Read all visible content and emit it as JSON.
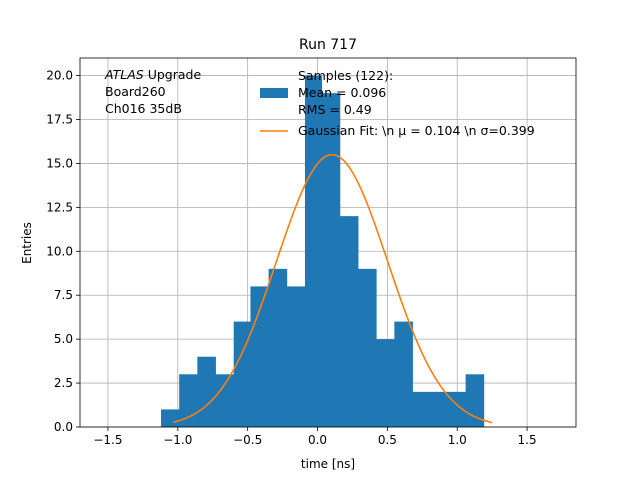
{
  "chart_data": {
    "type": "bar",
    "title": "Run 717",
    "xlabel": "time [ns]",
    "ylabel": "Entries",
    "xlim": [
      -1.7,
      1.85
    ],
    "ylim": [
      0,
      21
    ],
    "grid": true,
    "x_ticks": [
      {
        "value": -1.5,
        "label": "−1.5"
      },
      {
        "value": -1.0,
        "label": "−1.0"
      },
      {
        "value": -0.5,
        "label": "−0.5"
      },
      {
        "value": 0.0,
        "label": "0.0"
      },
      {
        "value": 0.5,
        "label": "0.5"
      },
      {
        "value": 1.0,
        "label": "1.0"
      },
      {
        "value": 1.5,
        "label": "1.5"
      }
    ],
    "y_ticks": [
      {
        "value": 0,
        "label": "0.0"
      },
      {
        "value": 2.5,
        "label": "2.5"
      },
      {
        "value": 5,
        "label": "5.0"
      },
      {
        "value": 7.5,
        "label": "7.5"
      },
      {
        "value": 10,
        "label": "10.0"
      },
      {
        "value": 12.5,
        "label": "12.5"
      },
      {
        "value": 15,
        "label": "15.0"
      },
      {
        "value": 17.5,
        "label": "17.5"
      },
      {
        "value": 20,
        "label": "20.0"
      }
    ],
    "histogram": {
      "bin_edges": [
        -1.12,
        -0.99,
        -0.86,
        -0.73,
        -0.6,
        -0.48,
        -0.35,
        -0.22,
        -0.09,
        0.03,
        0.16,
        0.29,
        0.42,
        0.55,
        0.68,
        0.8,
        0.93,
        1.06,
        1.19,
        1.32
      ],
      "counts": [
        1,
        3,
        4,
        3,
        6,
        8,
        9,
        8,
        20,
        19,
        12,
        9,
        5,
        6,
        2,
        2,
        2,
        3,
        0
      ],
      "color": "#1f77b4"
    },
    "fit": {
      "mu": 0.104,
      "sigma": 0.399,
      "amplitude": 15.5,
      "x_range": [
        -1.03,
        1.25
      ],
      "color": "#ff7f0e"
    },
    "legend": {
      "placement": "top-center",
      "entries": [
        {
          "label": "Samples (122):\n Mean = 0.096\n RMS = 0.49",
          "color": "#1f77b4",
          "kind": "patch"
        },
        {
          "label": "Gaussian Fit: \\n μ = 0.104 \\n σ=0.399",
          "color": "#ff7f0e",
          "kind": "line"
        }
      ]
    },
    "annotation": {
      "lines": [
        {
          "italic": "ATLAS",
          "text": " Upgrade"
        },
        {
          "italic": "",
          "text": " Board260"
        },
        {
          "italic": "",
          "text": " Ch016 35dB"
        }
      ]
    }
  }
}
